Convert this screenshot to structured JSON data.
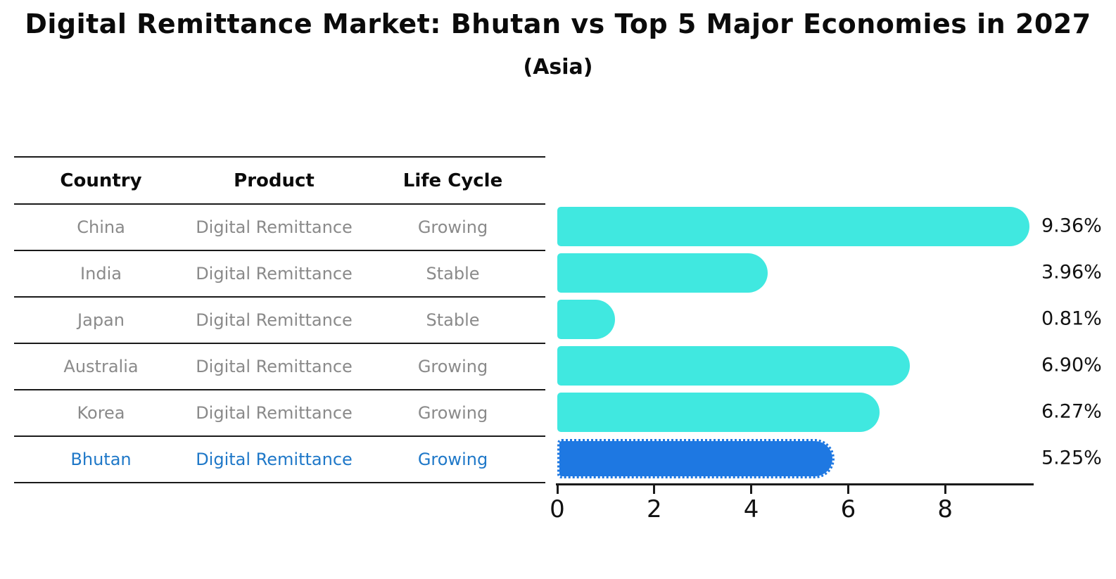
{
  "title": "Digital Remittance Market: Bhutan vs Top 5 Major Economies in 2027",
  "subtitle": "(Asia)",
  "table": {
    "headers": [
      "Country",
      "Product",
      "Life Cycle"
    ],
    "rows": [
      {
        "country": "China",
        "product": "Digital Remittance",
        "life_cycle": "Growing"
      },
      {
        "country": "India",
        "product": "Digital Remittance",
        "life_cycle": "Stable"
      },
      {
        "country": "Japan",
        "product": "Digital Remittance",
        "life_cycle": "Stable"
      },
      {
        "country": "Australia",
        "product": "Digital Remittance",
        "life_cycle": "Growing"
      },
      {
        "country": "Korea",
        "product": "Digital Remittance",
        "life_cycle": "Growing"
      },
      {
        "country": "Bhutan",
        "product": "Digital Remittance",
        "life_cycle": "Growing"
      }
    ]
  },
  "chart_data": {
    "type": "bar",
    "orientation": "horizontal",
    "categories": [
      "China",
      "India",
      "Japan",
      "Australia",
      "Korea",
      "Bhutan"
    ],
    "values": [
      9.36,
      3.96,
      0.81,
      6.9,
      6.27,
      5.25
    ],
    "value_labels": [
      "9.36%",
      "3.96%",
      "0.81%",
      "6.90%",
      "6.27%",
      "5.25%"
    ],
    "title": "Digital Remittance Market: Bhutan vs Top 5 Major Economies in 2027",
    "subtitle": "(Asia)",
    "xlabel": "",
    "ylabel": "",
    "xticks": [
      0,
      2,
      4,
      6,
      8
    ],
    "xlim": [
      0,
      9.83
    ],
    "grid": false,
    "legend": false,
    "highlight_index": 5,
    "bar_color": "#40E8E0",
    "highlight_bar_color": "#1E78E2",
    "highlight_text_color": "#1f78c8",
    "row_text_color": "#8a8a8a",
    "axis_color": "#1a1a1a"
  }
}
